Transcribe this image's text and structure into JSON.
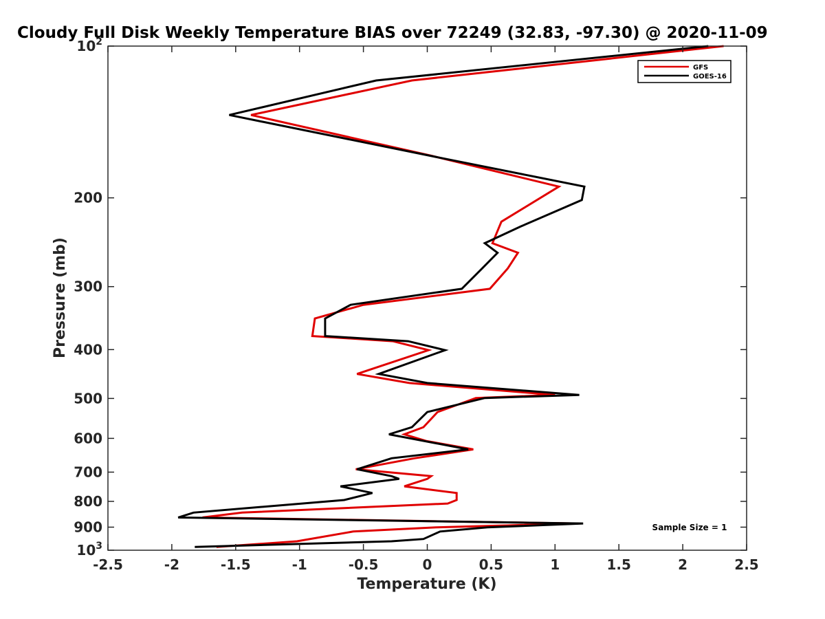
{
  "chart_data": {
    "type": "line",
    "title": "Cloudy Full Disk Weekly Temperature BIAS over 72249 (32.83, -97.30) @ 2020-11-09",
    "xlabel": "Temperature (K)",
    "ylabel": "Pressure (mb)",
    "xlim": [
      -2.5,
      2.5
    ],
    "ylim": [
      100,
      1000
    ],
    "y_scale": "log",
    "y_reversed": true,
    "x_ticks": [
      "-2.5",
      "-2",
      "-1.5",
      "-1",
      "-0.5",
      "0",
      "0.5",
      "1",
      "1.5",
      "2",
      "2.5"
    ],
    "y_ticks": [
      {
        "value": 100,
        "base": "10",
        "exp": "2"
      },
      {
        "value": 200,
        "label": "200"
      },
      {
        "value": 300,
        "label": "300"
      },
      {
        "value": 400,
        "label": "400"
      },
      {
        "value": 500,
        "label": "500"
      },
      {
        "value": 600,
        "label": "600"
      },
      {
        "value": 700,
        "label": "700"
      },
      {
        "value": 800,
        "label": "800"
      },
      {
        "value": 900,
        "label": "900"
      },
      {
        "value": 1000,
        "base": "10",
        "exp": "3"
      }
    ],
    "grid": false,
    "legend_position": "top-right",
    "annotation": "Sample Size = 1",
    "series": [
      {
        "name": "GFS",
        "color": "#e00000",
        "points": [
          [
            2.32,
            100
          ],
          [
            -0.12,
            117
          ],
          [
            -1.38,
            137
          ],
          [
            0.03,
            165
          ],
          [
            1.03,
            190
          ],
          [
            0.58,
            223
          ],
          [
            0.51,
            246
          ],
          [
            0.71,
            257
          ],
          [
            0.63,
            276
          ],
          [
            0.49,
            303
          ],
          [
            -0.5,
            326
          ],
          [
            -0.88,
            347
          ],
          [
            -0.9,
            376
          ],
          [
            -0.27,
            385
          ],
          [
            0.01,
            401
          ],
          [
            -0.55,
            447
          ],
          [
            -0.14,
            466
          ],
          [
            1.0,
            492
          ],
          [
            0.38,
            499
          ],
          [
            0.08,
            532
          ],
          [
            -0.03,
            570
          ],
          [
            -0.18,
            589
          ],
          [
            -0.01,
            607
          ],
          [
            0.36,
            631
          ],
          [
            -0.1,
            657
          ],
          [
            -0.56,
            691
          ],
          [
            0.03,
            713
          ],
          [
            0.0,
            722
          ],
          [
            -0.18,
            747
          ],
          [
            0.23,
            770
          ],
          [
            0.23,
            795
          ],
          [
            0.16,
            808
          ],
          [
            -1.45,
            842
          ],
          [
            -1.76,
            861
          ],
          [
            1.17,
            885
          ],
          [
            0.07,
            901
          ],
          [
            -0.58,
            918
          ],
          [
            -1.02,
            960
          ],
          [
            -1.65,
            985
          ]
        ]
      },
      {
        "name": "GOES-16",
        "color": "#000000",
        "points": [
          [
            2.2,
            100
          ],
          [
            -0.4,
            117
          ],
          [
            -1.55,
            137
          ],
          [
            0.02,
            165
          ],
          [
            1.23,
            190
          ],
          [
            1.21,
            202
          ],
          [
            0.73,
            228
          ],
          [
            0.45,
            246
          ],
          [
            0.55,
            257
          ],
          [
            0.43,
            276
          ],
          [
            0.27,
            303
          ],
          [
            -0.6,
            326
          ],
          [
            -0.8,
            347
          ],
          [
            -0.8,
            376
          ],
          [
            -0.15,
            385
          ],
          [
            0.14,
            401
          ],
          [
            -0.38,
            447
          ],
          [
            0.0,
            466
          ],
          [
            1.19,
            492
          ],
          [
            0.45,
            499
          ],
          [
            0.0,
            532
          ],
          [
            -0.12,
            570
          ],
          [
            -0.3,
            589
          ],
          [
            0.32,
            631
          ],
          [
            -0.28,
            657
          ],
          [
            -0.55,
            691
          ],
          [
            -0.28,
            713
          ],
          [
            -0.22,
            722
          ],
          [
            -0.68,
            747
          ],
          [
            -0.43,
            770
          ],
          [
            -0.65,
            795
          ],
          [
            -1.83,
            842
          ],
          [
            -1.95,
            861
          ],
          [
            1.22,
            885
          ],
          [
            0.47,
            901
          ],
          [
            0.1,
            918
          ],
          [
            -0.03,
            950
          ],
          [
            -0.28,
            960
          ],
          [
            -1.82,
            985
          ]
        ]
      }
    ]
  }
}
